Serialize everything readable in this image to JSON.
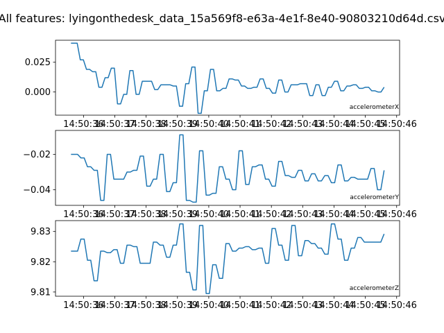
{
  "title": "All features: lyingonthedesk_data_15a569f8-e63a-4e1f-8e40-90803210d64d.csv",
  "chart_data": [
    {
      "type": "line",
      "series": [
        {
          "name": "accelerometerX",
          "color": "#1f77b4"
        }
      ],
      "x_start": "14:50:35.6",
      "x_end": "14:50:45.6",
      "x_ticks": [
        "14:50:36",
        "14:50:37",
        "14:50:38",
        "14:50:39",
        "14:50:40",
        "14:50:41",
        "14:50:42",
        "14:50:43",
        "14:50:44",
        "14:50:45",
        "14:50:46"
      ],
      "y_ticks": [
        {
          "value": 0.025,
          "label": "0.025"
        },
        {
          "value": 0.0,
          "label": "0.000"
        }
      ],
      "ylim": [
        -0.0195,
        0.0435
      ],
      "grid": false,
      "legend_position": "bottom-right",
      "values": [
        0.041,
        0.041,
        0.041,
        0.027,
        0.027,
        0.019,
        0.019,
        0.017,
        0.017,
        0.004,
        0.004,
        0.012,
        0.012,
        0.02,
        0.02,
        -0.01,
        -0.01,
        -0.002,
        -0.002,
        0.018,
        0.018,
        -0.002,
        -0.002,
        0.009,
        0.009,
        0.009,
        0.009,
        0.002,
        0.002,
        0.006,
        0.006,
        0.006,
        0.006,
        0.005,
        0.005,
        -0.012,
        -0.012,
        0.007,
        0.007,
        0.021,
        0.021,
        -0.018,
        -0.018,
        0.001,
        0.001,
        0.019,
        0.019,
        0.001,
        0.001,
        0.003,
        0.003,
        0.011,
        0.011,
        0.01,
        0.01,
        0.005,
        0.005,
        0.003,
        0.003,
        0.004,
        0.004,
        0.011,
        0.011,
        0.003,
        0.003,
        -0.001,
        -0.001,
        0.01,
        0.01,
        0.0,
        0.0,
        0.006,
        0.006,
        0.006,
        0.007,
        0.007,
        0.007,
        -0.003,
        -0.003,
        0.006,
        0.006,
        -0.003,
        -0.003,
        0.004,
        0.004,
        0.009,
        0.009,
        0.001,
        0.001,
        0.005,
        0.005,
        0.006,
        0.006,
        0.003,
        0.003,
        0.004,
        0.004,
        0.001,
        0.001,
        0.0,
        0.0,
        0.004
      ]
    },
    {
      "type": "line",
      "series": [
        {
          "name": "accelerometerY",
          "color": "#1f77b4"
        }
      ],
      "x_start": "14:50:35.6",
      "x_end": "14:50:45.6",
      "x_ticks": [
        "14:50:36",
        "14:50:37",
        "14:50:38",
        "14:50:39",
        "14:50:40",
        "14:50:41",
        "14:50:42",
        "14:50:43",
        "14:50:44",
        "14:50:45",
        "14:50:46"
      ],
      "y_ticks": [
        {
          "value": -0.02,
          "label": "−0.02"
        },
        {
          "value": -0.04,
          "label": "−0.04"
        }
      ],
      "ylim": [
        -0.0488,
        -0.0065
      ],
      "grid": false,
      "legend_position": "bottom-right",
      "values": [
        -0.02,
        -0.02,
        -0.02,
        -0.022,
        -0.022,
        -0.027,
        -0.027,
        -0.029,
        -0.029,
        -0.046,
        -0.046,
        -0.02,
        -0.02,
        -0.034,
        -0.034,
        -0.034,
        -0.034,
        -0.03,
        -0.03,
        -0.029,
        -0.029,
        -0.021,
        -0.021,
        -0.038,
        -0.038,
        -0.034,
        -0.034,
        -0.02,
        -0.02,
        -0.041,
        -0.041,
        -0.036,
        -0.036,
        -0.009,
        -0.009,
        -0.046,
        -0.046,
        -0.047,
        -0.047,
        -0.018,
        -0.018,
        -0.043,
        -0.043,
        -0.042,
        -0.042,
        -0.027,
        -0.027,
        -0.034,
        -0.034,
        -0.04,
        -0.04,
        -0.018,
        -0.018,
        -0.037,
        -0.037,
        -0.027,
        -0.027,
        -0.026,
        -0.026,
        -0.034,
        -0.034,
        -0.038,
        -0.038,
        -0.024,
        -0.024,
        -0.032,
        -0.032,
        -0.033,
        -0.033,
        -0.029,
        -0.029,
        -0.035,
        -0.035,
        -0.031,
        -0.031,
        -0.035,
        -0.035,
        -0.032,
        -0.032,
        -0.036,
        -0.036,
        -0.026,
        -0.026,
        -0.035,
        -0.035,
        -0.033,
        -0.033,
        -0.034,
        -0.034,
        -0.034,
        -0.034,
        -0.028,
        -0.028,
        -0.04,
        -0.04,
        -0.029
      ]
    },
    {
      "type": "line",
      "series": [
        {
          "name": "accelerometerZ",
          "color": "#1f77b4"
        }
      ],
      "x_start": "14:50:35.6",
      "x_end": "14:50:45.6",
      "x_ticks": [
        "14:50:36",
        "14:50:37",
        "14:50:38",
        "14:50:39",
        "14:50:40",
        "14:50:41",
        "14:50:42",
        "14:50:43",
        "14:50:44",
        "14:50:45",
        "14:50:46"
      ],
      "y_ticks": [
        {
          "value": 9.83,
          "label": "9.83"
        },
        {
          "value": 9.82,
          "label": "9.82"
        },
        {
          "value": 9.81,
          "label": "9.81"
        }
      ],
      "ylim": [
        9.8086,
        9.8336
      ],
      "grid": false,
      "legend_position": "bottom-right",
      "values": [
        9.8235,
        9.8235,
        9.8235,
        9.8275,
        9.8275,
        9.8205,
        9.8205,
        9.8137,
        9.8137,
        9.8235,
        9.8235,
        9.823,
        9.823,
        9.824,
        9.824,
        9.8195,
        9.8195,
        9.8255,
        9.8255,
        9.825,
        9.825,
        9.8195,
        9.8195,
        9.8195,
        9.8195,
        9.8265,
        9.8265,
        9.8255,
        9.8255,
        9.8215,
        9.8215,
        9.8255,
        9.8255,
        9.8325,
        9.8325,
        9.8165,
        9.8165,
        9.8107,
        9.8107,
        9.832,
        9.832,
        9.8095,
        9.8095,
        9.819,
        9.819,
        9.8145,
        9.8145,
        9.826,
        9.826,
        9.8235,
        9.8235,
        9.8245,
        9.8245,
        9.825,
        9.825,
        9.824,
        9.824,
        9.8245,
        9.8245,
        9.8195,
        9.8195,
        9.831,
        9.831,
        9.8255,
        9.8255,
        9.8205,
        9.8205,
        9.832,
        9.832,
        9.822,
        9.822,
        9.827,
        9.827,
        9.826,
        9.826,
        9.8245,
        9.8245,
        9.8225,
        9.8225,
        9.8325,
        9.8325,
        9.8275,
        9.8275,
        9.8205,
        9.8205,
        9.8245,
        9.8245,
        9.828,
        9.828,
        9.8265,
        9.8265,
        9.8265,
        9.8265,
        9.8265,
        9.8265,
        9.8292
      ]
    }
  ]
}
